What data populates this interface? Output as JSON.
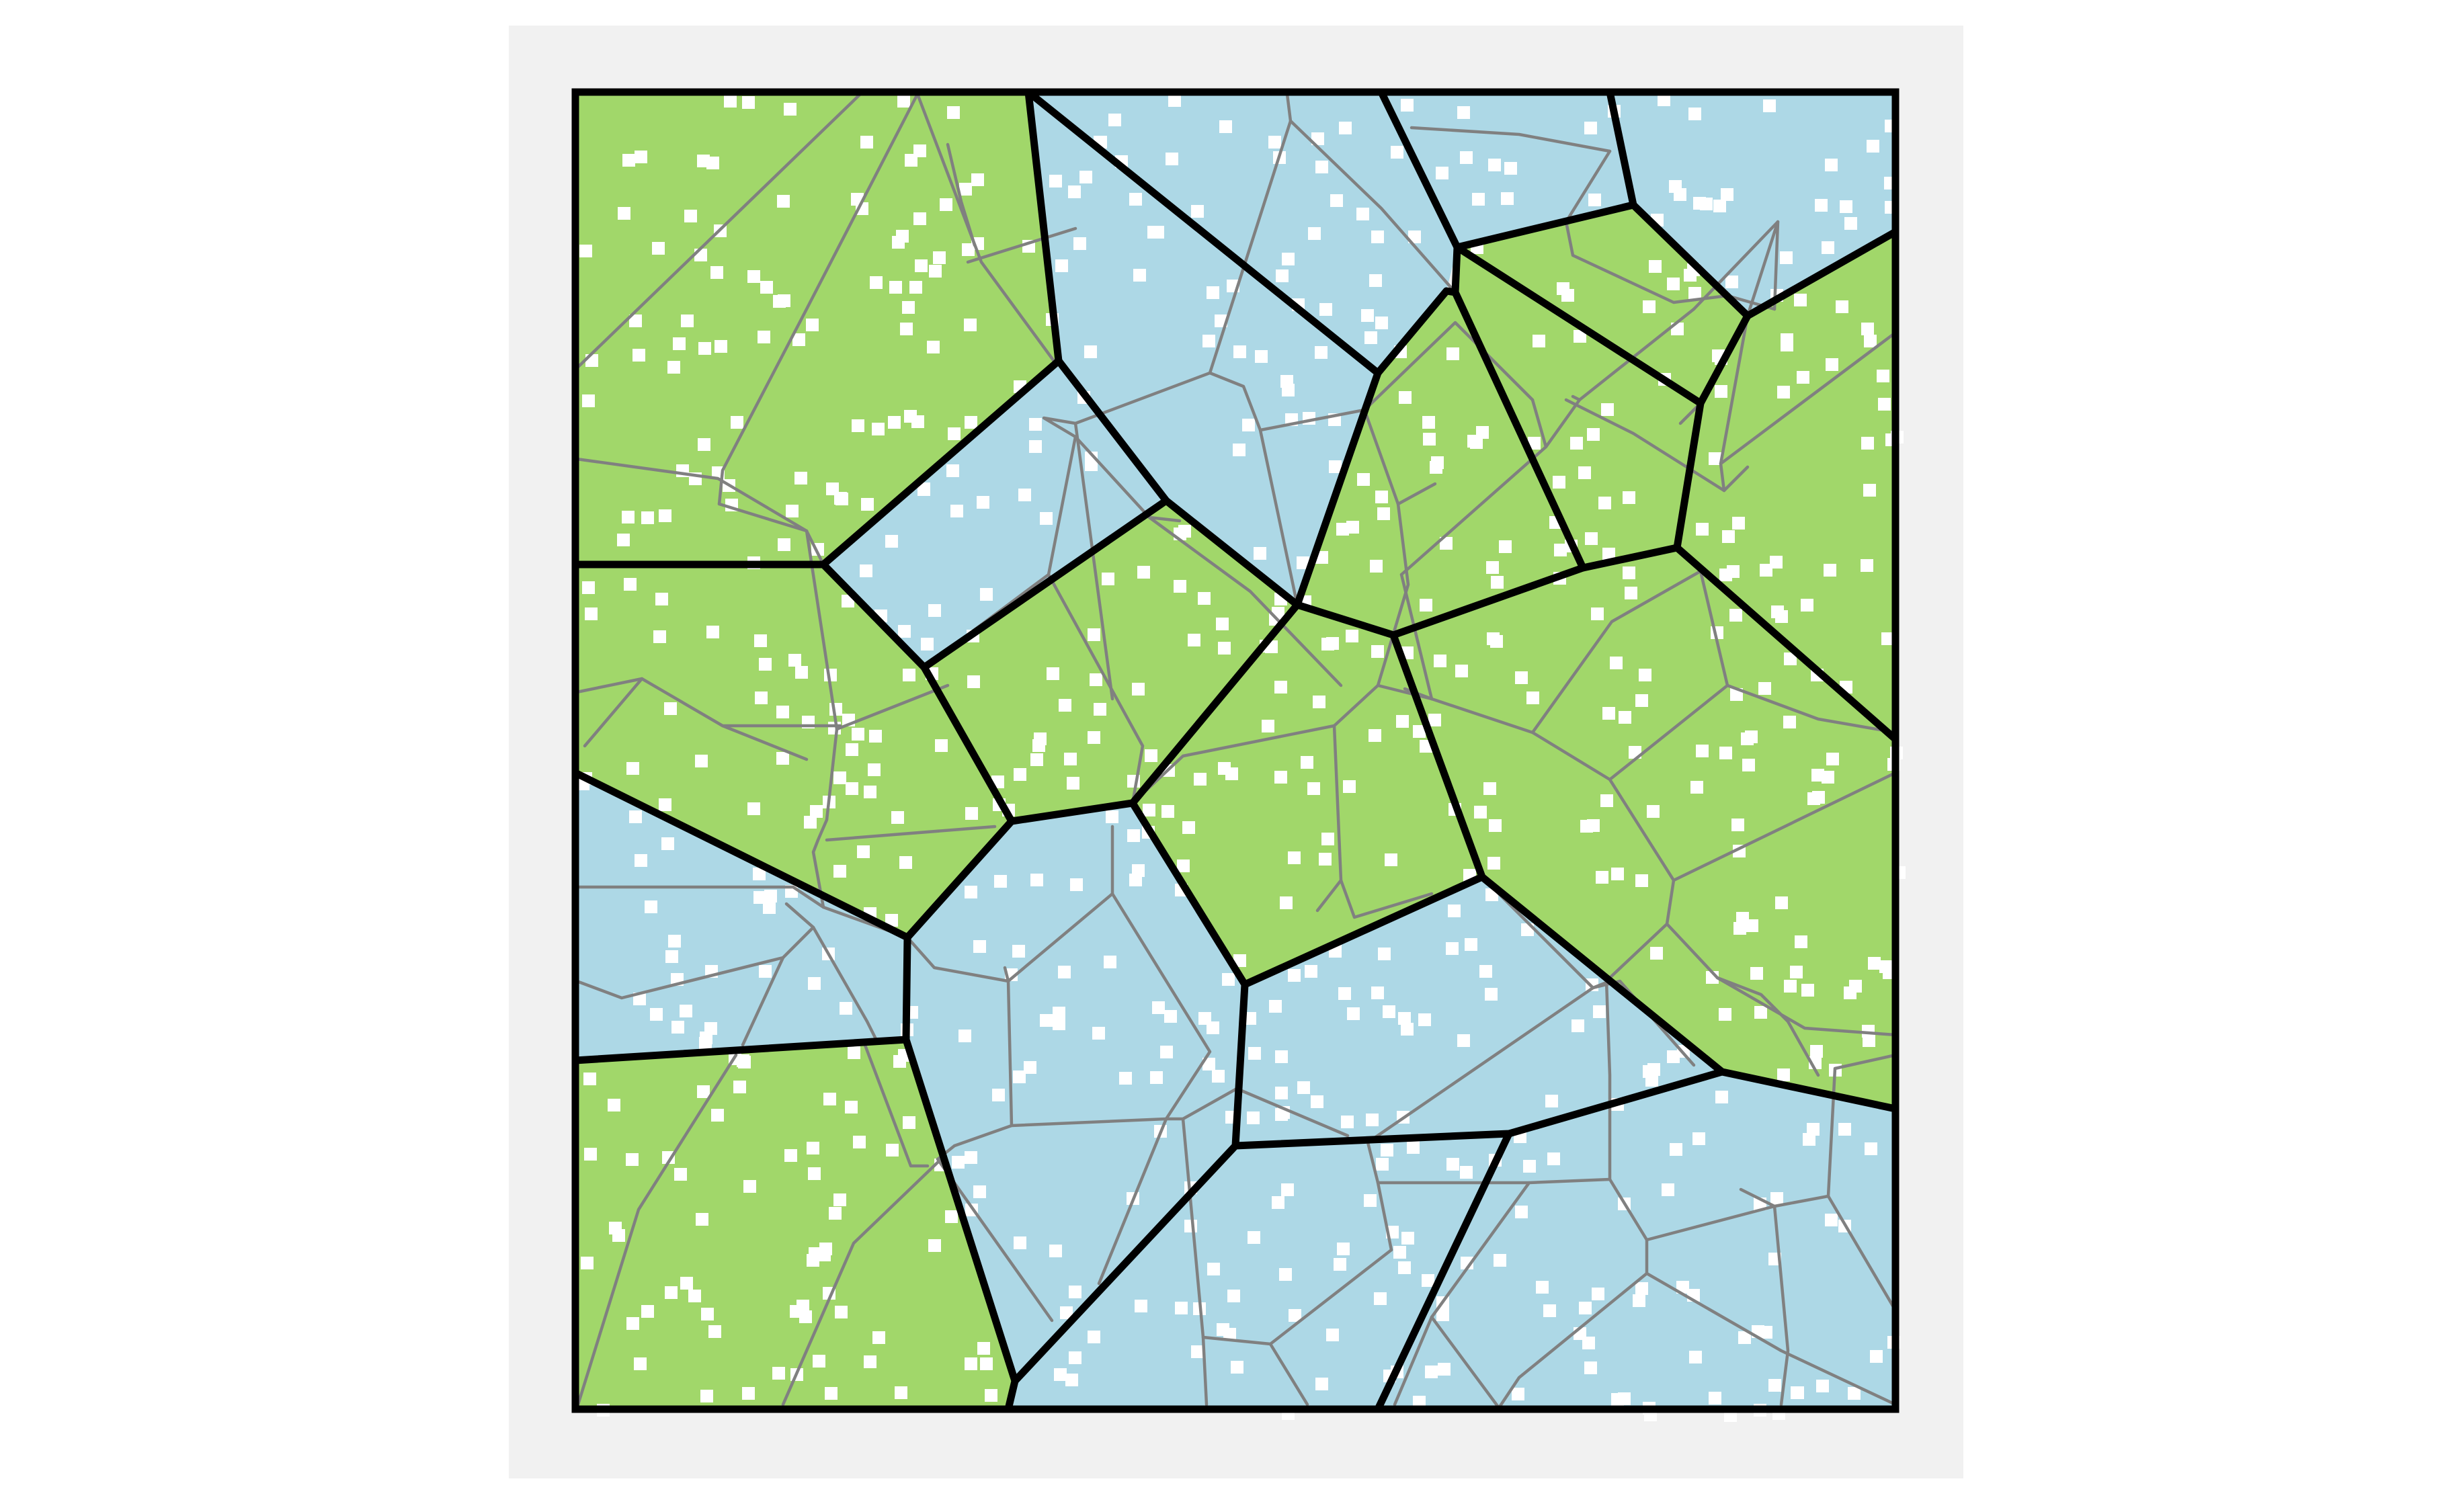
{
  "colors": {
    "panel": "#f1f1f1",
    "region_green": "#a1d76a",
    "region_blue": "#add8e6",
    "boundary": "#000000",
    "cell_edge": "#808080",
    "point": "#ffffff"
  },
  "regions": [
    {
      "id": "g1",
      "fill": "green"
    },
    {
      "id": "g2",
      "fill": "green"
    },
    {
      "id": "g3",
      "fill": "green"
    },
    {
      "id": "g4",
      "fill": "green"
    },
    {
      "id": "g5",
      "fill": "green"
    },
    {
      "id": "g6",
      "fill": "green"
    },
    {
      "id": "g7",
      "fill": "green"
    },
    {
      "id": "g8",
      "fill": "green"
    },
    {
      "id": "g9",
      "fill": "green"
    },
    {
      "id": "g10",
      "fill": "green"
    },
    {
      "id": "g11",
      "fill": "green"
    },
    {
      "id": "g12",
      "fill": "green"
    },
    {
      "id": "b1",
      "fill": "blue"
    },
    {
      "id": "b2",
      "fill": "blue"
    },
    {
      "id": "b3",
      "fill": "blue"
    },
    {
      "id": "b4",
      "fill": "blue"
    },
    {
      "id": "b5",
      "fill": "blue"
    },
    {
      "id": "b6",
      "fill": "blue"
    },
    {
      "id": "b7",
      "fill": "blue"
    },
    {
      "id": "b8",
      "fill": "blue"
    },
    {
      "id": "b9",
      "fill": "blue"
    }
  ]
}
